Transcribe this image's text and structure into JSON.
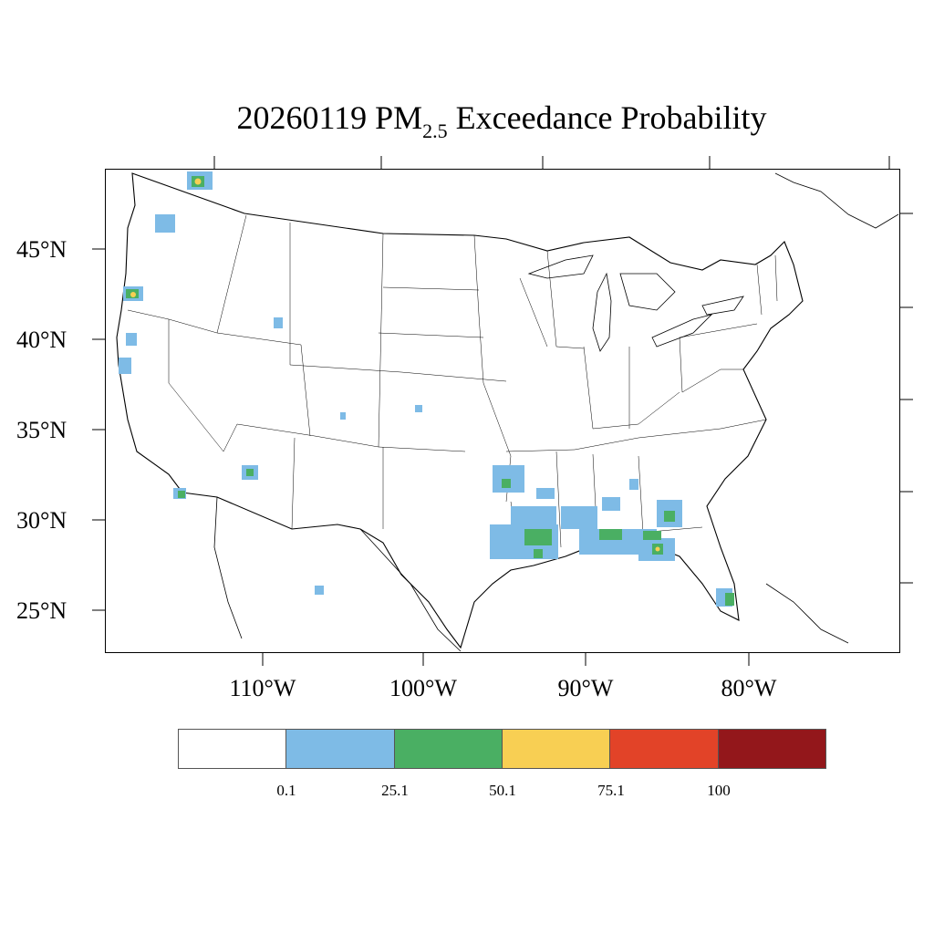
{
  "map": {
    "title_main": "20260119 PM",
    "title_sub": "2.5",
    "title_rest": " Exceedance Probability",
    "lat_labels": [
      {
        "text": "45°N"
      },
      {
        "text": "40°N"
      },
      {
        "text": "35°N"
      },
      {
        "text": "30°N"
      },
      {
        "text": "25°N"
      }
    ],
    "lon_labels": [
      {
        "text": "110°W"
      },
      {
        "text": "100°W"
      },
      {
        "text": "90°W"
      },
      {
        "text": "80°W"
      }
    ],
    "colors": {
      "c1": "#7ebbe6",
      "c2": "#4aaf63",
      "c3": "#f8cf53",
      "c4": "#e24328",
      "c5": "#93171b"
    }
  },
  "colorbar": {
    "segments": [
      "#ffffff",
      "#7ebbe6",
      "#4aaf63",
      "#f8cf53",
      "#e24328",
      "#93171b"
    ],
    "labels": [
      "0.1",
      "25.1",
      "50.1",
      "75.1",
      "100"
    ]
  }
}
